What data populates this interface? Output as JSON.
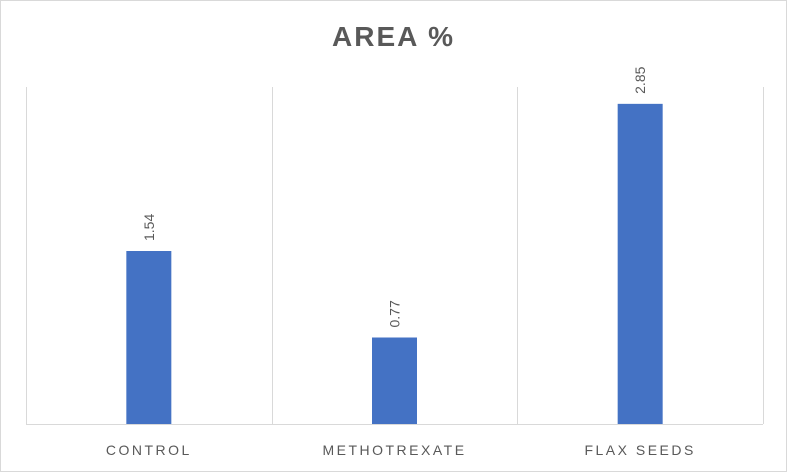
{
  "chart_data": {
    "type": "bar",
    "title": "AREA %",
    "xlabel": "",
    "ylabel": "",
    "categories": [
      "CONTROL",
      "METHOTREXATE",
      "FLAX SEEDS"
    ],
    "values": [
      1.54,
      0.77,
      2.85
    ],
    "data_labels": [
      "1.54",
      "0.77",
      "2.85"
    ],
    "ylim": [
      0,
      3.0
    ],
    "grid": "vertical category separators",
    "legend": "none",
    "colors": {
      "bar": "#4472C4",
      "gridline": "#d9d9d9",
      "text": "#595959"
    }
  }
}
